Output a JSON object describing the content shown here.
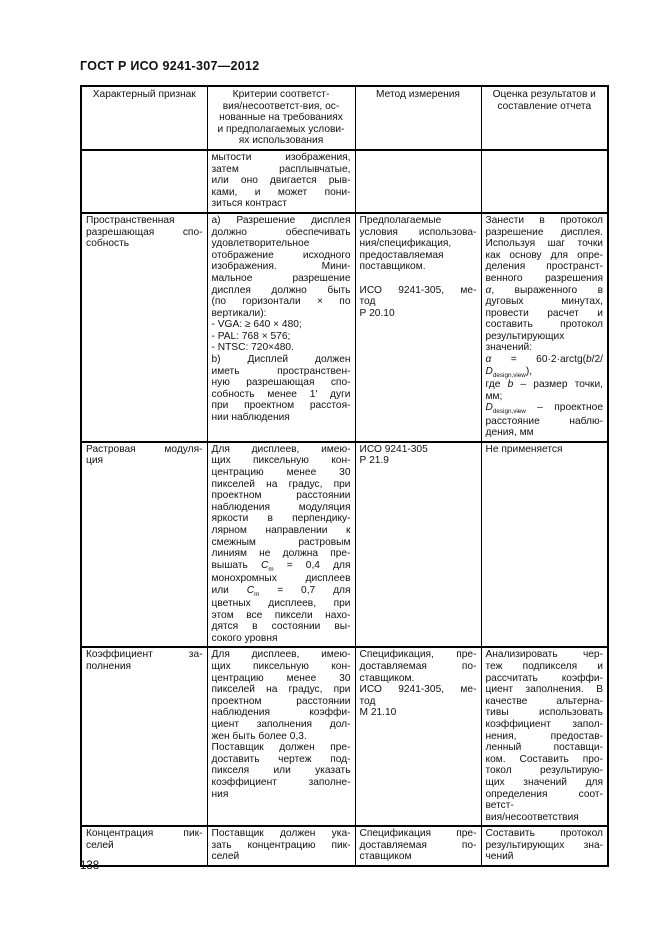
{
  "page": {
    "header_title": "ГОСТ Р ИСО 9241-307—2012",
    "page_number": "138"
  },
  "table": {
    "header": [
      [
        "Характерный признак"
      ],
      [
        "Критерии соответст-",
        "вия/несоответст-вия, ос-",
        "нованные на требованиях",
        "и предполагаемых услови-",
        "ях использования"
      ],
      [
        "Метод измерения"
      ],
      [
        "Оценка результатов и",
        "составление отчета"
      ]
    ],
    "rows": [
      {
        "cells": [
          [],
          [
            [
              "мытости изображения,",
              "затем расплывчатые,",
              "или оно двигается рыв-",
              "ками, и может пони-",
              "зиться контраст"
            ]
          ],
          [],
          []
        ]
      },
      {
        "cells": [
          [
            [
              "Пространственная",
              "разрешающая спо-",
              "собность"
            ]
          ],
          [
            [
              "а) Разрешение дисплея",
              "должно обеспечивать",
              "удовлетворительное",
              "отображение исходного",
              "изображения. Мини-",
              "мальное разрешение",
              "дисплея должно быть",
              "(по горизонтали × по",
              "вертикали):"
            ],
            [
              "- VGA: ≥ 640 × 480;"
            ],
            [
              "- PAL: 768 × 576;"
            ],
            [
              "- NTSC: 720×480."
            ],
            [
              "b) Дисплей должен",
              "иметь пространствен-",
              "ную разрешающая спо-",
              "собность менее 1' дуги",
              "при проектном расстоя-",
              "нии наблюдения"
            ]
          ],
          [
            [
              "Предполагаемые",
              "условия использова-",
              "ния/спецификация,",
              "предоставляемая",
              "поставщиком."
            ],
            [
              ""
            ],
            [
              "ИСО 9241-305, ме-",
              "тод",
              "Р 20.10"
            ]
          ],
          [
            [
              "Занести в протокол",
              "разрешение дисплея.",
              "Используя шаг точки",
              "как основу для опре-",
              "деления пространст-",
              "венного разрешения",
              "*α*, выраженного в",
              "дуговых минутах,",
              "провести расчет и",
              "составить протокол",
              "результирующих",
              "значений:"
            ],
            [
              "*α* = 60·2·arctg(*b*/2/",
              "*D*{design,view}),"
            ],
            [
              "где *b* – размер точки,",
              "мм;"
            ],
            [
              "*D*{design,view} – проектное",
              "расстояние наблю-",
              "дения, мм"
            ]
          ]
        ]
      },
      {
        "cells": [
          [
            [
              "Растровая модуля-",
              "ция"
            ]
          ],
          [
            [
              "Для дисплеев, имею-",
              "щих пиксельную кон-",
              "центрацию менее 30",
              "пикселей на градус, при",
              "проектном расстоянии",
              "наблюдения модуляция",
              "яркости в перпендику-",
              "лярном направлении к",
              "смежным растровым",
              "линиям не должна пре-",
              "вышать *C*{m} = 0,4 для",
              "монохромных дисплеев",
              "или *C*{m} = 0,7 для",
              "цветных дисплеев, при",
              "этом все пиксели нахо-",
              "дятся в состоянии вы-",
              "сокого уровня"
            ]
          ],
          [
            [
              "ИСО 9241-305"
            ],
            [
              "Р 21.9"
            ]
          ],
          [
            [
              "Не применяется"
            ]
          ]
        ]
      },
      {
        "cells": [
          [
            [
              "Коэффициент за-",
              "полнения"
            ]
          ],
          [
            [
              "Для дисплеев, имею-",
              "щих пиксельную кон-",
              "центрацию менее 30",
              "пикселей на градус, при",
              "проектном расстоянии",
              "наблюдения коэффи-",
              "циент заполнения дол-",
              "жен быть более 0,3."
            ],
            [
              "Поставщик должен пре-",
              "доставить чертеж под-",
              "пикселя или указать",
              "коэффициент заполне-",
              "ния"
            ]
          ],
          [
            [
              "Спецификация, пре-",
              "доставляемая по-",
              "ставщиком."
            ],
            [
              "ИСО 9241-305, ме-",
              "тод",
              "М 21.10"
            ]
          ],
          [
            [
              "Анализировать чер-",
              "теж подпикселя и",
              "рассчитать коэффи-",
              "циент заполнения. В",
              "качестве альтерна-",
              "тивы использовать",
              "коэффициент запол-",
              "нения, предостав-",
              "ленный поставщи-",
              "ком. Составить про-",
              "токол результирую-",
              "щих значений для",
              "определения соот-",
              "ветст-",
              "вия/несоответствия"
            ]
          ]
        ]
      },
      {
        "cells": [
          [
            [
              "Концентрация пик-",
              "селей"
            ]
          ],
          [
            [
              "Поставщик должен ука-",
              "зать концентрацию пик-",
              "селей"
            ]
          ],
          [
            [
              "Спецификация пре-",
              "доставляемая по-",
              "ставщиком"
            ]
          ],
          [
            [
              "Составить протокол",
              "результирующих зна-",
              "чений"
            ]
          ]
        ]
      }
    ]
  }
}
